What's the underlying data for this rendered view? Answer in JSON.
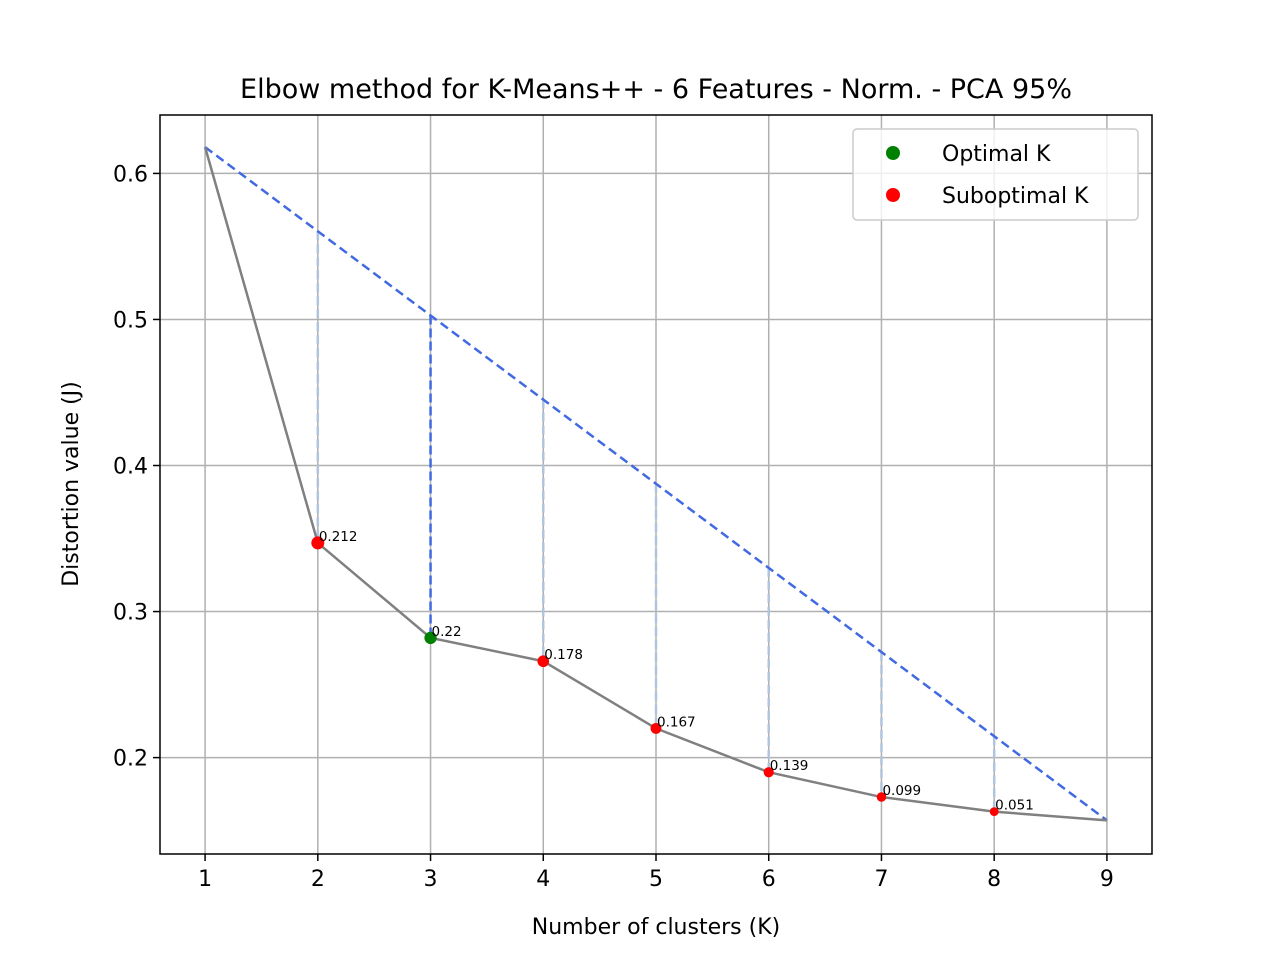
{
  "chart_data": {
    "type": "line",
    "title": "Elbow method for K-Means++ - 6 Features - Norm. - PCA 95%",
    "xlabel": "Number of clusters (K)",
    "ylabel": "Distortion value (J)",
    "xlim": [
      0.6,
      9.4
    ],
    "ylim": [
      0.134,
      0.64
    ],
    "x_ticks": [
      1,
      2,
      3,
      4,
      5,
      6,
      7,
      8,
      9
    ],
    "y_ticks": [
      0.2,
      0.3,
      0.4,
      0.5,
      0.6
    ],
    "grid": true,
    "legend_position": "top-right",
    "x": [
      1,
      2,
      3,
      4,
      5,
      6,
      7,
      8,
      9
    ],
    "distortion": [
      0.618,
      0.347,
      0.282,
      0.266,
      0.22,
      0.19,
      0.173,
      0.163,
      0.157
    ],
    "optimal_k": 3,
    "chord": {
      "from": [
        1,
        0.618
      ],
      "to": [
        9,
        0.157
      ]
    },
    "point_labels": [
      {
        "k": 2,
        "text": "0.212"
      },
      {
        "k": 3,
        "text": "0.22"
      },
      {
        "k": 4,
        "text": "0.178"
      },
      {
        "k": 5,
        "text": "0.167"
      },
      {
        "k": 6,
        "text": "0.139"
      },
      {
        "k": 7,
        "text": "0.099"
      },
      {
        "k": 8,
        "text": "0.051"
      }
    ],
    "legend": [
      {
        "label": "Optimal K",
        "color": "#008000"
      },
      {
        "label": "Suboptimal K",
        "color": "#ff0000"
      }
    ],
    "colors": {
      "curve": "#808080",
      "chord": "#4169e1",
      "distance_lines": "#b0c4de",
      "optimal_distance_line": "#4169e1",
      "optimal": "#008000",
      "suboptimal": "#ff0000",
      "grid": "#b0b0b0"
    }
  }
}
